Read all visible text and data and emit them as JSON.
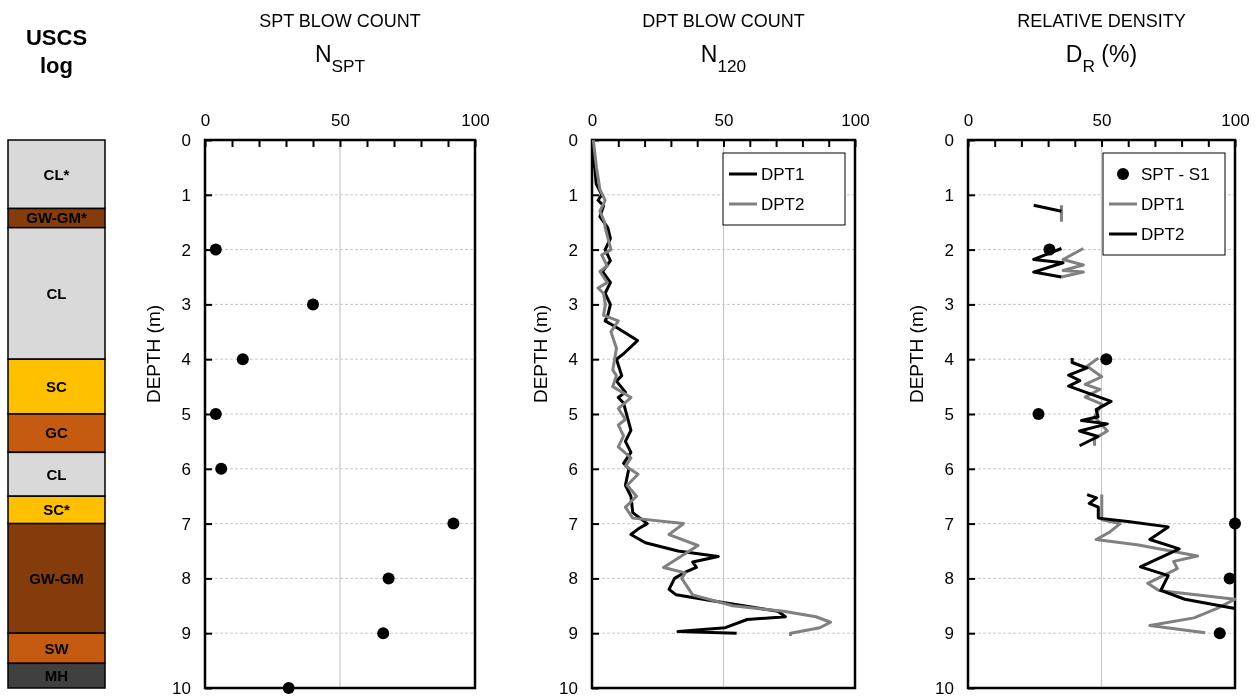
{
  "chart_data": [
    {
      "type": "bar",
      "stacked": true,
      "title": "USCS log",
      "categories": [
        null
      ],
      "ylim": [
        10,
        0
      ],
      "tick_labels": false,
      "series": [
        {
          "name": "CL*",
          "color": "#d9d9d9",
          "values": [
            1.25
          ]
        },
        {
          "name": "GW-GM*",
          "color": "#843c0c",
          "values": [
            0.35
          ]
        },
        {
          "name": "CL",
          "color": "#d9d9d9",
          "values": [
            2.4
          ]
        },
        {
          "name": "SC",
          "color": "#ffc000",
          "values": [
            1.0
          ]
        },
        {
          "name": "GC",
          "color": "#c55a11",
          "values": [
            0.7
          ]
        },
        {
          "name": "CL",
          "color": "#d9d9d9",
          "values": [
            0.8
          ]
        },
        {
          "name": "SC*",
          "color": "#ffc000",
          "values": [
            0.5
          ]
        },
        {
          "name": "GW-GM",
          "color": "#843c0c",
          "values": [
            2.0
          ]
        },
        {
          "name": "SW",
          "color": "#c55a11",
          "values": [
            0.55
          ]
        },
        {
          "name": "MH",
          "color": "#404040",
          "values": [
            0.45
          ]
        }
      ]
    },
    {
      "type": "scatter",
      "title": "SPT BLOW COUNT",
      "subtitle": "N$_{SPT}$",
      "ylabel": "DEPTH (m)",
      "xlim": [
        0,
        100
      ],
      "xticks": [
        0,
        {
          "value": 10,
          "label": null
        },
        {
          "value": 20,
          "label": null
        },
        {
          "value": 30,
          "label": null
        },
        {
          "value": 40,
          "label": null
        },
        50,
        {
          "value": 60,
          "label": null
        },
        {
          "value": 70,
          "label": null
        },
        {
          "value": 80,
          "label": null
        },
        {
          "value": 90,
          "label": null
        },
        100
      ],
      "ylim": [
        10,
        0
      ],
      "yticks": [
        0,
        1,
        2,
        3,
        4,
        5,
        6,
        7,
        8,
        9,
        10
      ],
      "grid": "y",
      "ref_lines": [
        {
          "axis": "x",
          "value": 50,
          "color": "#c8c8c8"
        }
      ],
      "series": [
        {
          "color": "#000000",
          "x": [
            4,
            40,
            14,
            4,
            6,
            92,
            68,
            66,
            31
          ],
          "values": [
            2,
            3,
            4,
            5,
            6,
            7,
            8,
            9,
            10
          ]
        }
      ]
    },
    {
      "type": "line",
      "title": "DPT BLOW COUNT",
      "subtitle": "N$_{120}$",
      "ylabel": "DEPTH (m)",
      "xlim": [
        0,
        100
      ],
      "xticks": [
        0,
        {
          "value": 10,
          "label": null
        },
        {
          "value": 20,
          "label": null
        },
        {
          "value": 30,
          "label": null
        },
        {
          "value": 40,
          "label": null
        },
        50,
        {
          "value": 60,
          "label": null
        },
        {
          "value": 70,
          "label": null
        },
        {
          "value": 80,
          "label": null
        },
        {
          "value": 90,
          "label": null
        },
        100
      ],
      "ylim": [
        10,
        0
      ],
      "yticks": [
        0,
        1,
        2,
        3,
        4,
        5,
        6,
        7,
        8,
        9,
        10
      ],
      "grid": "y",
      "ref_lines": [
        {
          "axis": "x",
          "value": 50,
          "color": "#c8c8c8"
        }
      ],
      "legend": "top right",
      "series": [
        {
          "name": "DPT1",
          "color": "#000000",
          "x": [
            0.3,
            1,
            1.6,
            3.7,
            2.3,
            4.4,
            3,
            6,
            7,
            5,
            7,
            4,
            7,
            5,
            7,
            6,
            5,
            8.6,
            17.3,
            12,
            9.3,
            11.3,
            9.3,
            12.7,
            10,
            12,
            14.8,
            12.7,
            14.8,
            12,
            14,
            12.7,
            14.8,
            15.5,
            21,
            17.5,
            14.8,
            20.3,
            32.7,
            48,
            38.3,
            39.7,
            34.8,
            31.4,
            29.3,
            32,
            44.5,
            70.7,
            73.5,
            59,
            50.7,
            32.7,
            55
          ],
          "values": [
            0.1,
            0.5,
            0.8,
            1.0,
            1.1,
            1.2,
            1.4,
            1.6,
            1.8,
            2.0,
            2.2,
            2.4,
            2.6,
            2.8,
            3.0,
            3.2,
            3.3,
            3.4,
            3.66,
            3.9,
            4.0,
            4.3,
            4.4,
            4.6,
            4.7,
            4.8,
            5.3,
            5.5,
            5.7,
            5.9,
            6.0,
            6.3,
            6.5,
            6.8,
            7.0,
            7.1,
            7.2,
            7.35,
            7.5,
            7.6,
            7.7,
            7.8,
            7.9,
            8.0,
            8.2,
            8.3,
            8.4,
            8.6,
            8.7,
            8.75,
            8.9,
            8.97,
            9.0
          ]
        },
        {
          "name": "DPT2",
          "color": "#808080",
          "x": [
            0.5,
            1.7,
            3,
            5,
            3,
            4.8,
            5,
            7.2,
            3.7,
            5.8,
            3,
            5.8,
            2.3,
            4.4,
            5.1,
            4.4,
            10,
            7.2,
            9.3,
            8.6,
            7.9,
            9.3,
            7.9,
            14.8,
            10,
            12.7,
            10,
            12,
            10,
            14.8,
            12.7,
            17.5,
            13.4,
            16.9,
            12.7,
            15.5,
            34.8,
            29.3,
            40.3,
            27.2,
            35.5,
            34.1,
            38.3,
            53.5,
            72.8,
            85.2,
            90.7,
            86.6,
            75.5,
            75.5
          ],
          "values": [
            0.0,
            0.5,
            0.9,
            1.1,
            1.3,
            1.5,
            1.6,
            2.0,
            2.1,
            2.3,
            2.4,
            2.6,
            2.7,
            2.8,
            3.0,
            3.2,
            3.3,
            3.5,
            3.8,
            4.0,
            4.2,
            4.3,
            4.5,
            4.7,
            4.9,
            5.1,
            5.2,
            5.4,
            5.6,
            5.8,
            5.95,
            6.1,
            6.3,
            6.5,
            6.7,
            6.9,
            7.0,
            7.2,
            7.4,
            7.8,
            7.9,
            8.0,
            8.3,
            8.5,
            8.6,
            8.7,
            8.8,
            8.9,
            9.0,
            9.05
          ]
        }
      ]
    },
    {
      "type": "line",
      "title": "RELATIVE DENSITY",
      "subtitle": "D$_{R}$ (%)",
      "ylabel": "DEPTH (m)",
      "xlim": [
        0,
        100
      ],
      "xticks": [
        0,
        {
          "value": 10,
          "label": null
        },
        {
          "value": 20,
          "label": null
        },
        {
          "value": 30,
          "label": null
        },
        {
          "value": 40,
          "label": null
        },
        50,
        {
          "value": 60,
          "label": null
        },
        {
          "value": 70,
          "label": null
        },
        {
          "value": 80,
          "label": null
        },
        {
          "value": 90,
          "label": null
        },
        100
      ],
      "ylim": [
        10,
        0
      ],
      "yticks": [
        0,
        1,
        2,
        3,
        4,
        5,
        6,
        7,
        8,
        9,
        10
      ],
      "grid": "y",
      "ref_lines": [
        {
          "axis": "x",
          "value": 50,
          "color": "#c8c8c8"
        }
      ],
      "legend": "top right",
      "series": [
        {
          "name": "SPT - S1",
          "type": "scatter",
          "color": "#000000",
          "x": [
            30.5,
            51.8,
            26.4,
            100,
            98,
            94.3
          ],
          "values": [
            2,
            4,
            5,
            7,
            8,
            9
          ]
        },
        {
          "name": "DPT1",
          "color": "#808080",
          "x": [
            35,
            35,
            null,
            43.2,
            35.6,
            43.2,
            35.6,
            43.2,
            35,
            null,
            48.8,
            44.6,
            50.1,
            43.9,
            49.4,
            43.9,
            50.1,
            47.4,
            52.2,
            47.4,
            47.4,
            null,
            50.1,
            50.1,
            57,
            52.9,
            48,
            63.9,
            86,
            77,
            78.4,
            67.3,
            71.5,
            100,
            93.1,
            84.7,
            68.1,
            88.8
          ],
          "values": [
            1.19,
            1.49,
            null,
            1.98,
            2.18,
            2.28,
            2.38,
            2.41,
            2.5,
            null,
            3.98,
            4.13,
            4.32,
            4.46,
            4.55,
            4.69,
            4.82,
            5.05,
            5.31,
            5.45,
            5.58,
            null,
            6.47,
            6.93,
            7.0,
            7.16,
            7.29,
            7.39,
            7.59,
            7.69,
            7.82,
            8.09,
            8.22,
            8.38,
            8.55,
            8.72,
            8.86,
            8.99
          ]
        },
        {
          "name": "DPT2",
          "color": "#000000",
          "x": [
            24.6,
            35,
            null,
            35,
            24.6,
            35.6,
            24.6,
            35,
            null,
            39,
            39,
            44.6,
            37.7,
            41.9,
            37.7,
            53.6,
            48,
            48.7,
            42.5,
            52.2,
            41.8,
            48.7,
            41.8,
            null,
            44.6,
            48.1,
            45.4,
            48.8,
            48.8,
            59.8,
            75,
            68.1,
            79.1,
            64.6,
            75,
            72.2,
            81.2,
            100
          ],
          "values": [
            1.19,
            1.3,
            null,
            1.98,
            2.18,
            2.24,
            2.41,
            2.5,
            null,
            3.98,
            4.06,
            4.16,
            4.29,
            4.39,
            4.49,
            4.77,
            4.92,
            5.05,
            5.12,
            5.18,
            5.31,
            5.41,
            5.58,
            null,
            6.47,
            6.53,
            6.63,
            6.7,
            6.9,
            6.96,
            7.06,
            7.29,
            7.46,
            7.79,
            7.95,
            8.22,
            8.38,
            8.55
          ]
        }
      ]
    }
  ]
}
